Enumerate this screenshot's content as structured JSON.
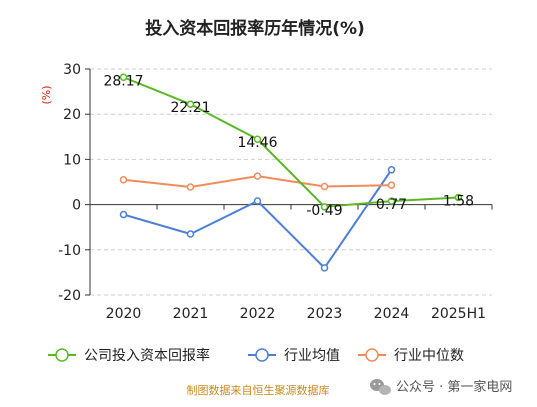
{
  "chart_data": {
    "type": "line",
    "title": "投入资本回报率历年情况(%)",
    "ylabel": "(%)",
    "categories": [
      "2020",
      "2021",
      "2022",
      "2023",
      "2024",
      "2025H1"
    ],
    "ylim": [
      -20,
      30
    ],
    "yticks": [
      -20,
      -10,
      0,
      10,
      20,
      30
    ],
    "grid": "horizontal-dashed",
    "legend_position": "bottom",
    "series": [
      {
        "name": "公司投入资本回报率",
        "color": "#5ab826",
        "values": [
          28.17,
          22.21,
          14.46,
          -0.49,
          0.77,
          1.58
        ],
        "labels": [
          "28.17",
          "22.21",
          "14.46",
          "-0.49",
          "0.77",
          "1.58"
        ]
      },
      {
        "name": "行业均值",
        "color": "#4e7fd6",
        "values": [
          -2.2,
          -6.5,
          0.8,
          -14.0,
          7.7,
          null
        ]
      },
      {
        "name": "行业中位数",
        "color": "#f28b5b",
        "values": [
          5.5,
          3.9,
          6.3,
          4.0,
          4.3,
          null
        ]
      }
    ]
  },
  "footer": {
    "source": "制图数据来自恒生聚源数据库",
    "watermark_icon": "wechat-icon",
    "watermark": "公众号 · 第一家电网"
  }
}
